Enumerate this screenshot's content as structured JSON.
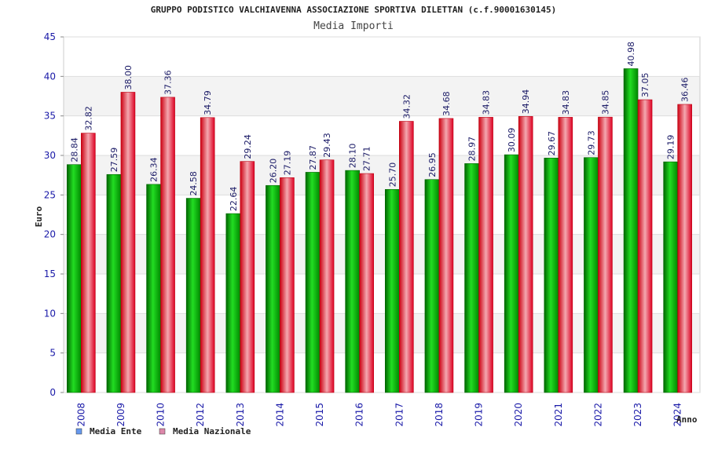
{
  "chart_data": {
    "type": "bar",
    "title": "GRUPPO PODISTICO VALCHIAVENNA ASSOCIAZIONE SPORTIVA DILETTAN (c.f.90001630145)",
    "subtitle": "Media Importi",
    "xlabel": "Anno",
    "ylabel": "Euro",
    "ylim": [
      0,
      45
    ],
    "yticks": [
      0,
      5,
      10,
      15,
      20,
      25,
      30,
      35,
      40,
      45
    ],
    "grid": true,
    "legend_position": "bottom-left",
    "categories": [
      "2008",
      "2009",
      "2010",
      "2012",
      "2013",
      "2014",
      "2015",
      "2016",
      "2017",
      "2018",
      "2019",
      "2020",
      "2021",
      "2022",
      "2023",
      "2024"
    ],
    "series": [
      {
        "name": "Media Ente",
        "color": "#00bb00",
        "legend_color": "#6699ee",
        "values": [
          28.84,
          27.59,
          26.34,
          24.58,
          22.64,
          26.2,
          27.87,
          28.1,
          25.7,
          26.95,
          28.97,
          30.09,
          29.67,
          29.73,
          40.98,
          29.19
        ],
        "labels": [
          "28.84",
          "27.59",
          "26.34",
          "24.58",
          "22.64",
          "26.20",
          "27.87",
          "28.10",
          "25.70",
          "26.95",
          "28.97",
          "30.09",
          "29.67",
          "29.73",
          "40.98",
          "29.19"
        ]
      },
      {
        "name": "Media Nazionale",
        "color": "#ee2233",
        "legend_color": "#dd88aa",
        "values": [
          32.82,
          38.0,
          37.36,
          34.79,
          29.24,
          27.19,
          29.43,
          27.71,
          34.32,
          34.68,
          34.83,
          34.94,
          34.83,
          34.85,
          37.05,
          36.46
        ],
        "labels": [
          "32.82",
          "38.00",
          "37.36",
          "34.79",
          "29.24",
          "27.19",
          "29.43",
          "27.71",
          "34.32",
          "34.68",
          "34.83",
          "34.94",
          "34.83",
          "34.85",
          "37.05",
          "36.46"
        ]
      }
    ]
  }
}
